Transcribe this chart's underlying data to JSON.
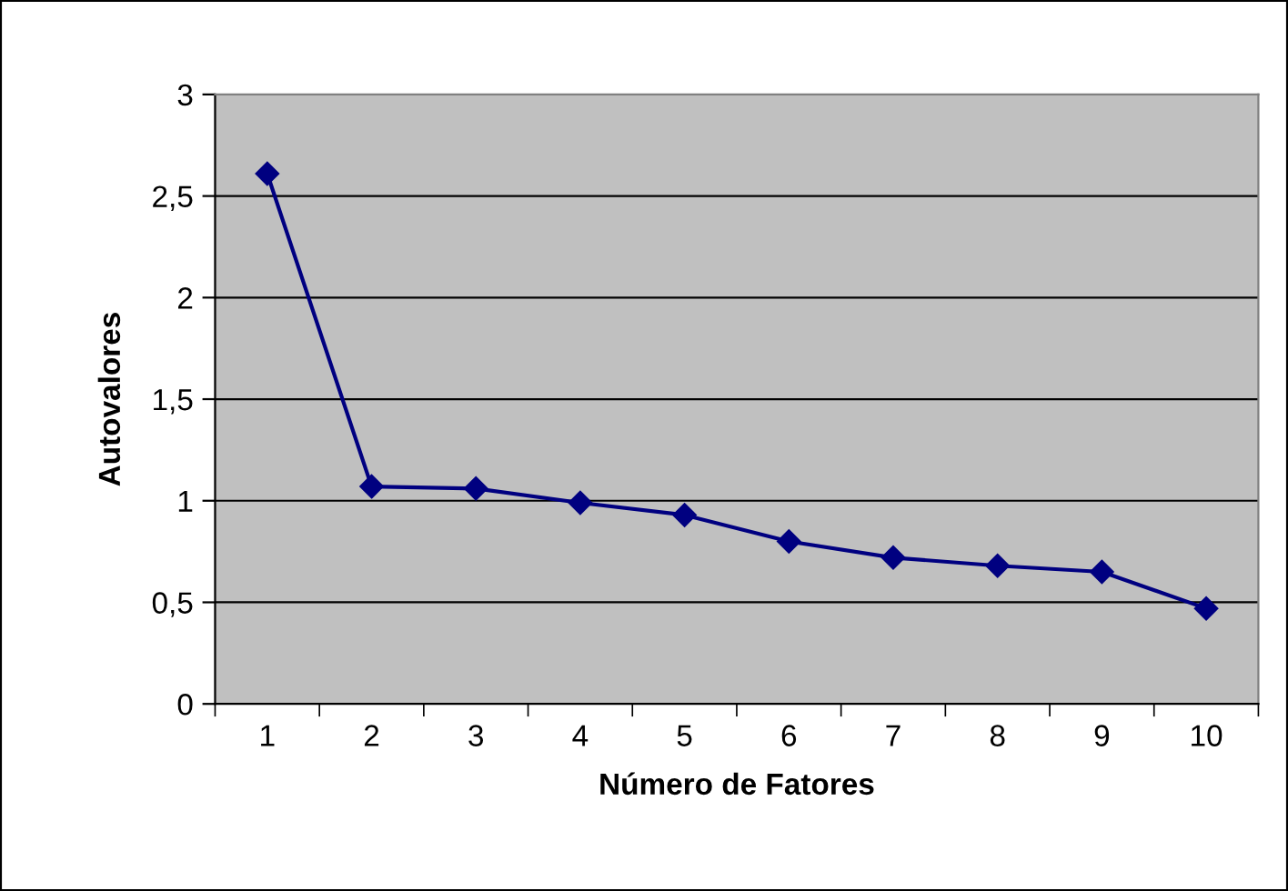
{
  "chart_data": {
    "type": "line",
    "xlabel": "Número de Fatores",
    "ylabel": "Autovalores",
    "categories": [
      "1",
      "2",
      "3",
      "4",
      "5",
      "6",
      "7",
      "8",
      "9",
      "10"
    ],
    "series": [
      {
        "color": "#000080",
        "values": [
          2.61,
          1.07,
          1.06,
          0.99,
          0.93,
          0.8,
          0.72,
          0.68,
          0.65,
          0.47
        ]
      }
    ],
    "ylim": [
      0,
      3
    ],
    "yticks": [
      0,
      {
        "value": 0.5,
        "label": "0,5"
      },
      1,
      {
        "value": 1.5,
        "label": "1,5"
      },
      2,
      {
        "value": 2.5,
        "label": "2,5"
      },
      3
    ],
    "grid": "y",
    "marker": "diamond",
    "line_style": "solid",
    "legend": false
  }
}
